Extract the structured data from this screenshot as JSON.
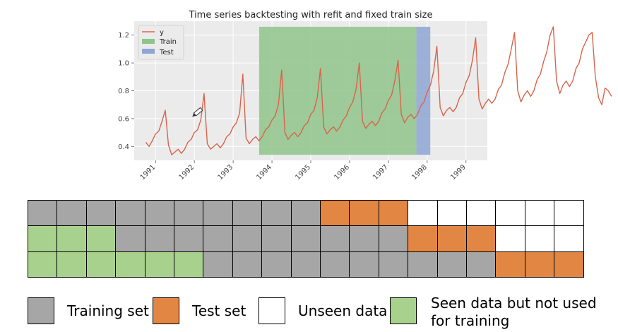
{
  "chart_data": {
    "type": "line",
    "title": "Time series backtesting with refit and fixed train size",
    "xlabel": "",
    "ylabel": "",
    "xlim": [
      1990.45,
      1999.55
    ],
    "ylim": [
      0.3,
      1.3
    ],
    "yticks": [
      0.4,
      0.6,
      0.8,
      1.0,
      1.2
    ],
    "ytick_labels": [
      "0.4",
      "0.6",
      "0.8",
      "1.0",
      "1.2"
    ],
    "xticks": [
      1991,
      1992,
      1993,
      1994,
      1995,
      1996,
      1997,
      1998,
      1999
    ],
    "xtick_labels": [
      "1991",
      "1992",
      "1993",
      "1994",
      "1995",
      "1996",
      "1997",
      "1998",
      "1999"
    ],
    "grid": true,
    "legend": "top-left",
    "legend_entries": [
      "y",
      "Train",
      "Test"
    ],
    "series": [
      {
        "name": "y",
        "color": "#d9644c",
        "x_start": 1990.75,
        "x_step": 0.0833333,
        "values": [
          0.43,
          0.4,
          0.44,
          0.49,
          0.51,
          0.58,
          0.66,
          0.41,
          0.34,
          0.36,
          0.38,
          0.35,
          0.38,
          0.43,
          0.45,
          0.5,
          0.52,
          0.59,
          0.78,
          0.42,
          0.38,
          0.4,
          0.42,
          0.39,
          0.42,
          0.47,
          0.49,
          0.54,
          0.57,
          0.64,
          0.92,
          0.46,
          0.42,
          0.45,
          0.47,
          0.44,
          0.47,
          0.52,
          0.54,
          0.59,
          0.62,
          0.7,
          0.95,
          0.5,
          0.45,
          0.48,
          0.5,
          0.47,
          0.5,
          0.55,
          0.57,
          0.63,
          0.66,
          0.75,
          0.96,
          0.54,
          0.49,
          0.52,
          0.54,
          0.51,
          0.54,
          0.59,
          0.62,
          0.68,
          0.72,
          0.81,
          1.0,
          0.58,
          0.53,
          0.56,
          0.58,
          0.55,
          0.58,
          0.64,
          0.67,
          0.73,
          0.77,
          0.87,
          1.02,
          0.63,
          0.57,
          0.61,
          0.63,
          0.6,
          0.63,
          0.69,
          0.72,
          0.79,
          0.84,
          0.94,
          1.12,
          0.68,
          0.62,
          0.66,
          0.68,
          0.65,
          0.68,
          0.75,
          0.78,
          0.86,
          0.91,
          1.02,
          1.18,
          0.74,
          0.67,
          0.71,
          0.74,
          0.71,
          0.74,
          0.81,
          0.84,
          0.93,
          0.99,
          1.1,
          1.22,
          0.8,
          0.72,
          0.77,
          0.8,
          0.76,
          0.8,
          0.88,
          0.92,
          1.01,
          1.08,
          1.2,
          1.26,
          0.87,
          0.78,
          0.84,
          0.87,
          0.83,
          0.87,
          0.96,
          1.0,
          1.1,
          1.15,
          1.2,
          1.22,
          0.9,
          0.75,
          0.7,
          0.82,
          0.8,
          0.76
        ]
      }
    ],
    "spans": [
      {
        "name": "Train",
        "color": "#8fc48a",
        "x0": 1993.67,
        "x1": 1997.72
      },
      {
        "name": "Test",
        "color": "#8ea6d4",
        "x0": 1997.72,
        "x1": 1998.08
      }
    ],
    "backtest_grid": {
      "columns": 19,
      "rows": [
        [
          "train",
          "train",
          "train",
          "train",
          "train",
          "train",
          "train",
          "train",
          "train",
          "train",
          "test",
          "test",
          "test",
          "unseen",
          "unseen",
          "unseen",
          "unseen",
          "unseen",
          "unseen"
        ],
        [
          "seen",
          "seen",
          "seen",
          "train",
          "train",
          "train",
          "train",
          "train",
          "train",
          "train",
          "train",
          "train",
          "train",
          "test",
          "test",
          "test",
          "unseen",
          "unseen",
          "unseen"
        ],
        [
          "seen",
          "seen",
          "seen",
          "seen",
          "seen",
          "seen",
          "train",
          "train",
          "train",
          "train",
          "train",
          "train",
          "train",
          "train",
          "train",
          "train",
          "test",
          "test",
          "test"
        ]
      ]
    },
    "grid_legend": [
      {
        "key": "train",
        "label": "Training set",
        "color": "#a6a6a6"
      },
      {
        "key": "test",
        "label": "Test set",
        "color": "#e28643"
      },
      {
        "key": "unseen",
        "label": "Unseen data",
        "color": "#ffffff"
      },
      {
        "key": "seen",
        "label_line1": "Seen data but not used",
        "label_line2": "for training",
        "color": "#a9d18e"
      }
    ]
  }
}
